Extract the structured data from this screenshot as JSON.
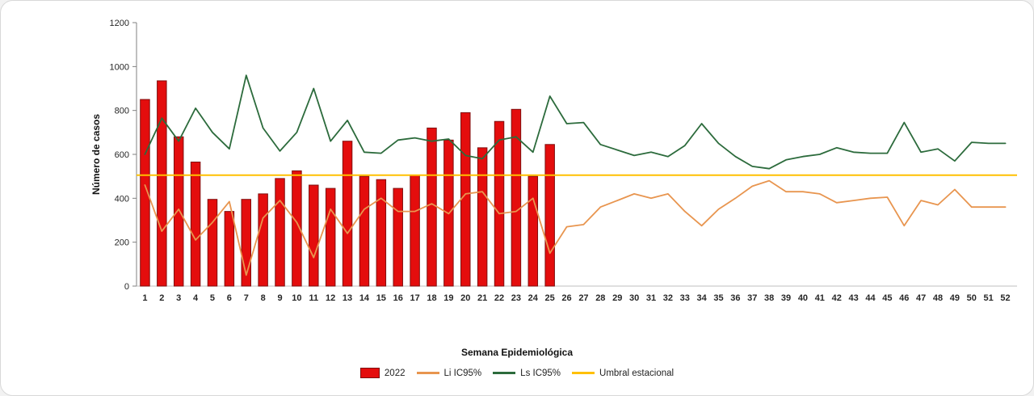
{
  "chart_data": {
    "type": "bar",
    "title": "",
    "xlabel": "Semana Epidemiológica",
    "ylabel": "Número de casos",
    "ylim": [
      0,
      1200
    ],
    "ytick_step": 200,
    "grid": false,
    "legend_position": "bottom",
    "categories": [
      1,
      2,
      3,
      4,
      5,
      6,
      7,
      8,
      9,
      10,
      11,
      12,
      13,
      14,
      15,
      16,
      17,
      18,
      19,
      20,
      21,
      22,
      23,
      24,
      25,
      26,
      27,
      28,
      29,
      30,
      31,
      32,
      33,
      34,
      35,
      36,
      37,
      38,
      39,
      40,
      41,
      42,
      43,
      44,
      45,
      46,
      47,
      48,
      49,
      50,
      51,
      52
    ],
    "series": [
      {
        "name": "2022",
        "type": "bar",
        "color": "#e40d0d",
        "border": "#7f0f0f",
        "values": [
          850,
          935,
          680,
          565,
          395,
          340,
          395,
          420,
          490,
          525,
          460,
          445,
          660,
          500,
          485,
          445,
          505,
          720,
          665,
          790,
          630,
          750,
          805,
          500,
          645
        ]
      },
      {
        "name": "Li IC95%",
        "type": "line",
        "color": "#e8954f",
        "values": [
          460,
          250,
          350,
          210,
          290,
          385,
          50,
          310,
          390,
          290,
          130,
          350,
          240,
          350,
          400,
          340,
          340,
          375,
          330,
          420,
          430,
          330,
          340,
          400,
          150,
          270,
          280,
          360,
          390,
          420,
          400,
          420,
          340,
          275,
          350,
          400,
          455,
          480,
          430,
          430,
          420,
          380,
          390,
          400,
          405,
          275,
          390,
          370,
          440,
          360,
          360,
          360
        ]
      },
      {
        "name": "Ls IC95%",
        "type": "line",
        "color": "#2c6b3c",
        "values": [
          600,
          765,
          660,
          810,
          700,
          625,
          960,
          720,
          615,
          700,
          900,
          660,
          755,
          610,
          605,
          665,
          675,
          660,
          670,
          595,
          580,
          665,
          680,
          610,
          865,
          740,
          745,
          645,
          620,
          595,
          610,
          590,
          640,
          740,
          650,
          590,
          545,
          535,
          575,
          590,
          600,
          630,
          610,
          605,
          605,
          745,
          610,
          625,
          570,
          655,
          650,
          650
        ]
      },
      {
        "name": "Umbral estacional",
        "type": "line",
        "color": "#ffc000",
        "constant": 505
      }
    ]
  }
}
